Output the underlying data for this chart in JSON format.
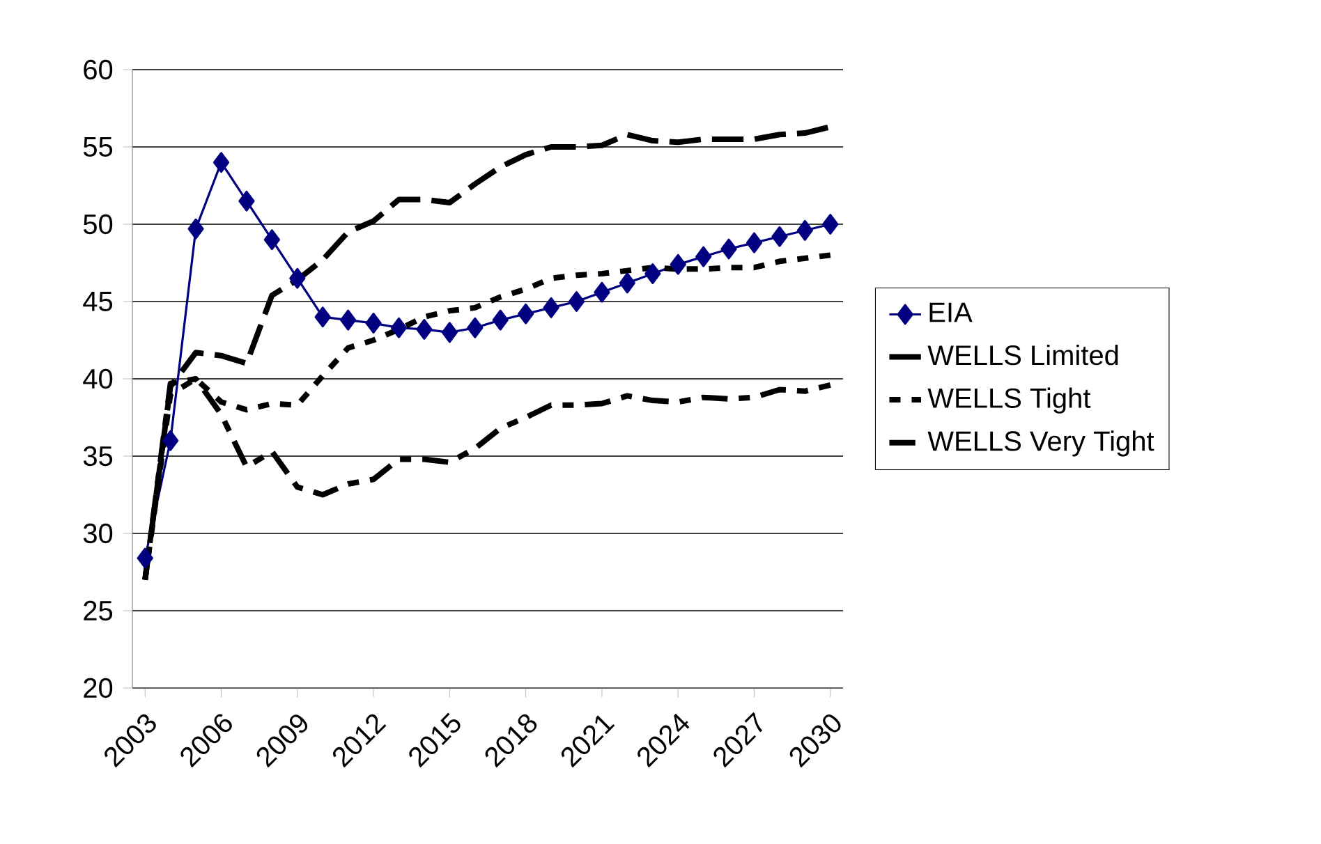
{
  "chart_data": {
    "type": "line",
    "x": [
      2003,
      2004,
      2005,
      2006,
      2007,
      2008,
      2009,
      2010,
      2011,
      2012,
      2013,
      2014,
      2015,
      2016,
      2017,
      2018,
      2019,
      2020,
      2021,
      2022,
      2023,
      2024,
      2025,
      2026,
      2027,
      2028,
      2029,
      2030
    ],
    "xlim": [
      2002.5,
      2030.5
    ],
    "xticks": [
      2003,
      2006,
      2009,
      2012,
      2015,
      2018,
      2021,
      2024,
      2027,
      2030
    ],
    "ylim": [
      20,
      60
    ],
    "yticks": [
      20,
      25,
      30,
      35,
      40,
      45,
      50,
      55,
      60
    ],
    "grid": "y",
    "legend": "right",
    "series": [
      {
        "name": "EIA",
        "color": "#000080",
        "marker": "diamond",
        "line_style": "solid",
        "values": [
          28.4,
          36,
          49.7,
          54,
          51.5,
          49,
          46.5,
          44,
          43.8,
          43.6,
          43.3,
          43.2,
          43.0,
          43.3,
          43.8,
          44.2,
          44.6,
          45.0,
          45.6,
          46.2,
          46.8,
          47.4,
          47.9,
          48.4,
          48.8,
          49.2,
          49.6,
          50.0
        ]
      },
      {
        "name": "WELLS Limited",
        "color": "#000000",
        "marker": "none",
        "line_style": "dashed",
        "values": [
          27,
          39.5,
          41.7,
          41.5,
          41,
          45.4,
          46.4,
          47.7,
          49.5,
          50.2,
          51.6,
          51.6,
          51.4,
          52.6,
          53.7,
          54.5,
          55,
          55,
          55.1,
          55.8,
          55.4,
          55.3,
          55.5,
          55.5,
          55.5,
          55.8,
          55.9,
          56.3
        ]
      },
      {
        "name": "WELLS Tight",
        "color": "#000000",
        "marker": "none",
        "line_style": "dotted",
        "values": [
          27,
          39,
          40,
          38.5,
          38,
          38.4,
          38.3,
          40.2,
          42,
          42.5,
          43.2,
          44,
          44.4,
          44.6,
          45.3,
          45.8,
          46.5,
          46.7,
          46.8,
          47,
          47.2,
          47.1,
          47.1,
          47.2,
          47.2,
          47.6,
          47.8,
          48
        ]
      },
      {
        "name": "WELLS Very Tight",
        "color": "#000000",
        "marker": "none",
        "line_style": "dashdot",
        "values": [
          27,
          39.7,
          40,
          37.7,
          34.3,
          35.3,
          33,
          32.5,
          33.2,
          33.5,
          34.8,
          34.8,
          34.6,
          35.5,
          36.8,
          37.5,
          38.3,
          38.3,
          38.4,
          38.9,
          38.6,
          38.5,
          38.8,
          38.7,
          38.8,
          39.3,
          39.2,
          39.6
        ]
      }
    ]
  }
}
